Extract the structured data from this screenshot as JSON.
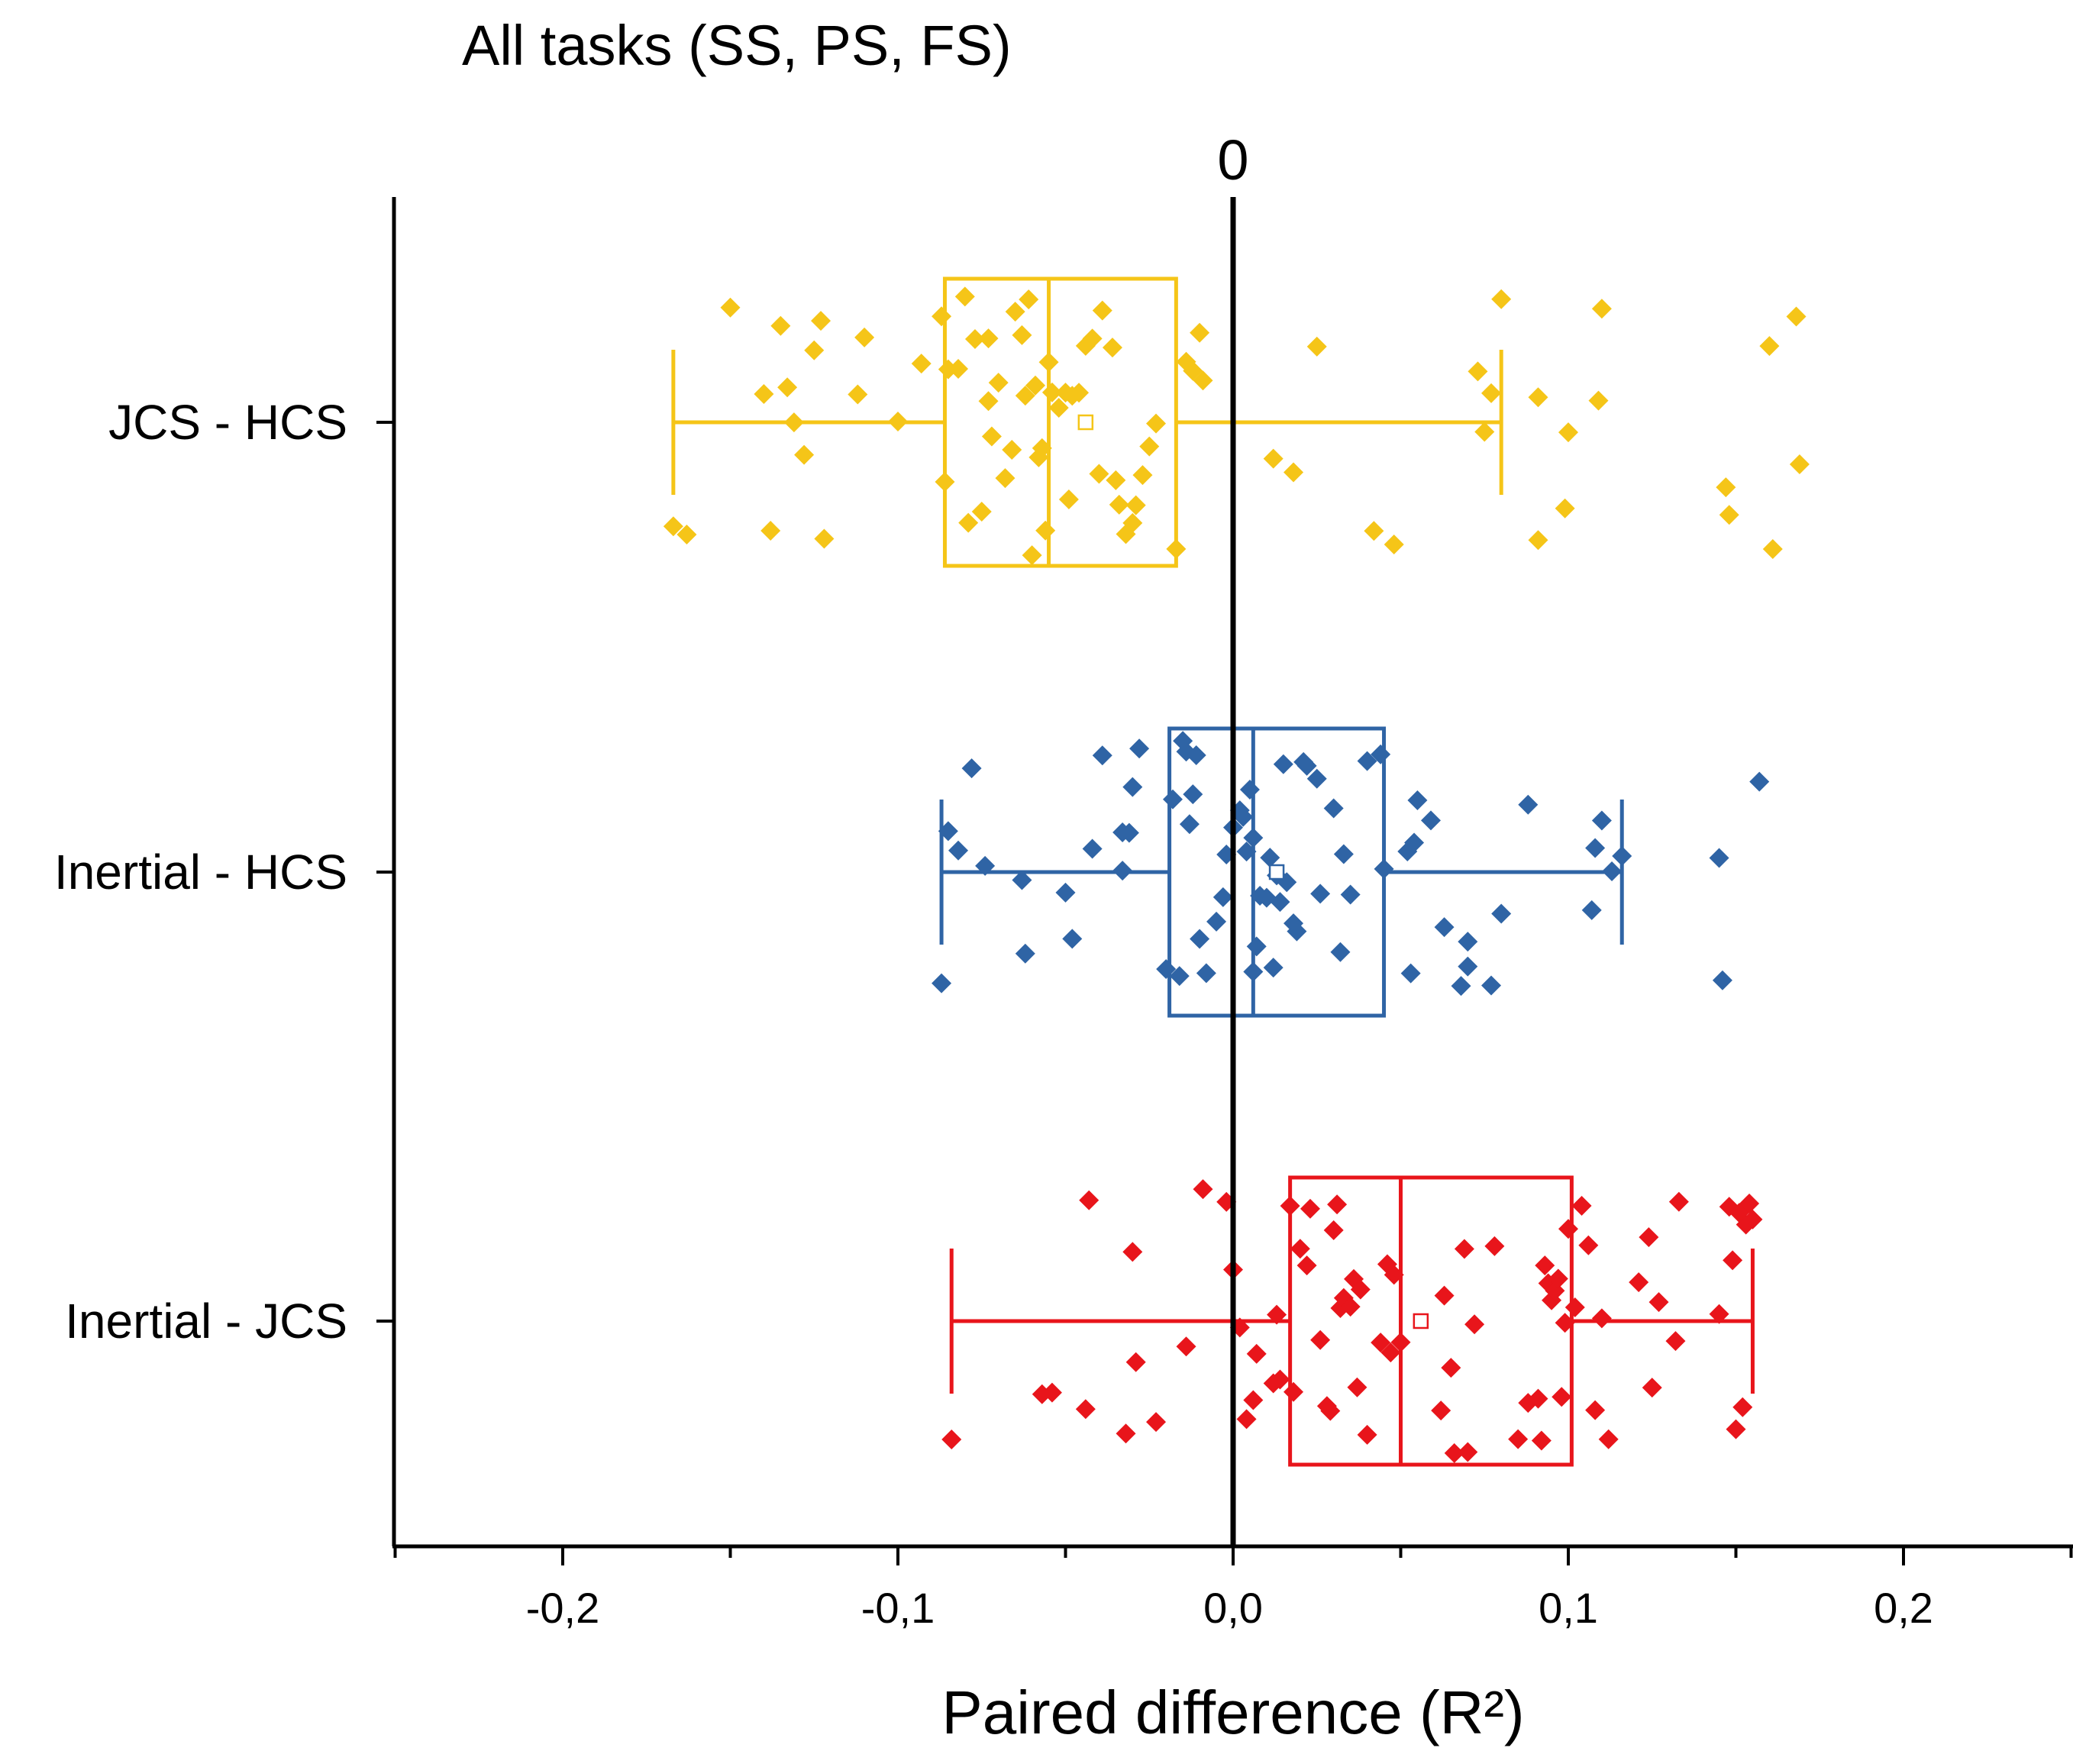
{
  "chart_data": {
    "type": "box",
    "orientation": "horizontal",
    "title": "All tasks (SS, PS, FS)",
    "xlabel": "Paired difference (R²)",
    "ylabel": "",
    "xlim": [
      -0.25,
      0.25
    ],
    "xticks": [
      -0.2,
      -0.1,
      0.0,
      0.1,
      0.2
    ],
    "xtick_labels": [
      "-0,2",
      "-0,1",
      "0,0",
      "0,1",
      "0,2"
    ],
    "reference_line": {
      "x": 0,
      "label": "0"
    },
    "grid": false,
    "legend": "none",
    "series": [
      {
        "category": "JCS - HCS",
        "color": "#F5C518",
        "box": {
          "whisker_low": -0.167,
          "q1": -0.086,
          "median": -0.055,
          "q3": -0.017,
          "whisker_high": 0.08,
          "mean": -0.044
        },
        "points": [
          -0.167,
          -0.163,
          -0.15,
          -0.14,
          -0.138,
          -0.135,
          -0.133,
          -0.131,
          -0.128,
          -0.125,
          -0.123,
          -0.122,
          -0.112,
          -0.11,
          -0.1,
          -0.093,
          -0.087,
          -0.086,
          -0.085,
          -0.082,
          -0.08,
          -0.079,
          -0.077,
          -0.075,
          -0.073,
          -0.073,
          -0.072,
          -0.07,
          -0.068,
          -0.066,
          -0.065,
          -0.063,
          -0.062,
          -0.061,
          -0.06,
          -0.059,
          -0.058,
          -0.057,
          -0.056,
          -0.055,
          -0.054,
          -0.052,
          -0.05,
          -0.049,
          -0.048,
          -0.046,
          -0.044,
          -0.042,
          -0.04,
          -0.039,
          -0.036,
          -0.035,
          -0.034,
          -0.032,
          -0.03,
          -0.029,
          -0.027,
          -0.025,
          -0.023,
          -0.017,
          -0.014,
          -0.012,
          -0.01,
          -0.009,
          0.012,
          0.018,
          0.025,
          0.042,
          0.048,
          0.073,
          0.075,
          0.077,
          0.08,
          0.091,
          0.091,
          0.099,
          0.1,
          0.109,
          0.11,
          0.147,
          0.148,
          0.16,
          0.161,
          0.168,
          0.169
        ]
      },
      {
        "category": "Inertial - HCS",
        "color": "#2F64A5",
        "box": {
          "whisker_low": -0.087,
          "q1": -0.019,
          "median": 0.006,
          "q3": 0.045,
          "whisker_high": 0.116,
          "mean": 0.013
        },
        "points": [
          -0.087,
          -0.085,
          -0.082,
          -0.078,
          -0.074,
          -0.063,
          -0.062,
          -0.05,
          -0.048,
          -0.042,
          -0.039,
          -0.033,
          -0.033,
          -0.031,
          -0.03,
          -0.028,
          -0.02,
          -0.018,
          -0.016,
          -0.015,
          -0.014,
          -0.013,
          -0.012,
          -0.011,
          -0.01,
          -0.008,
          -0.005,
          -0.003,
          -0.002,
          0.0,
          0.002,
          0.003,
          0.004,
          0.005,
          0.006,
          0.006,
          0.007,
          0.008,
          0.01,
          0.011,
          0.012,
          0.013,
          0.014,
          0.015,
          0.016,
          0.018,
          0.019,
          0.021,
          0.022,
          0.025,
          0.026,
          0.03,
          0.032,
          0.033,
          0.035,
          0.04,
          0.044,
          0.045,
          0.052,
          0.053,
          0.054,
          0.055,
          0.059,
          0.063,
          0.068,
          0.07,
          0.07,
          0.077,
          0.08,
          0.088,
          0.107,
          0.108,
          0.11,
          0.113,
          0.116,
          0.145,
          0.146,
          0.157
        ]
      },
      {
        "category": "Inertial - JCS",
        "color": "#E8151B",
        "box": {
          "whisker_low": -0.084,
          "q1": 0.017,
          "median": 0.05,
          "q3": 0.101,
          "whisker_high": 0.155,
          "mean": 0.056
        },
        "points": [
          -0.084,
          -0.057,
          -0.054,
          -0.044,
          -0.043,
          -0.032,
          -0.03,
          -0.029,
          -0.023,
          -0.014,
          -0.009,
          -0.002,
          0.0,
          0.002,
          0.004,
          0.006,
          0.007,
          0.012,
          0.013,
          0.014,
          0.017,
          0.018,
          0.02,
          0.022,
          0.023,
          0.026,
          0.028,
          0.029,
          0.03,
          0.031,
          0.032,
          0.033,
          0.035,
          0.036,
          0.037,
          0.038,
          0.04,
          0.044,
          0.046,
          0.047,
          0.048,
          0.05,
          0.062,
          0.063,
          0.065,
          0.066,
          0.069,
          0.07,
          0.072,
          0.078,
          0.085,
          0.088,
          0.091,
          0.092,
          0.093,
          0.094,
          0.095,
          0.096,
          0.097,
          0.098,
          0.099,
          0.1,
          0.102,
          0.104,
          0.106,
          0.108,
          0.11,
          0.112,
          0.121,
          0.124,
          0.125,
          0.127,
          0.132,
          0.133,
          0.145,
          0.148,
          0.149,
          0.15,
          0.151,
          0.152,
          0.153,
          0.154,
          0.155
        ]
      }
    ]
  }
}
